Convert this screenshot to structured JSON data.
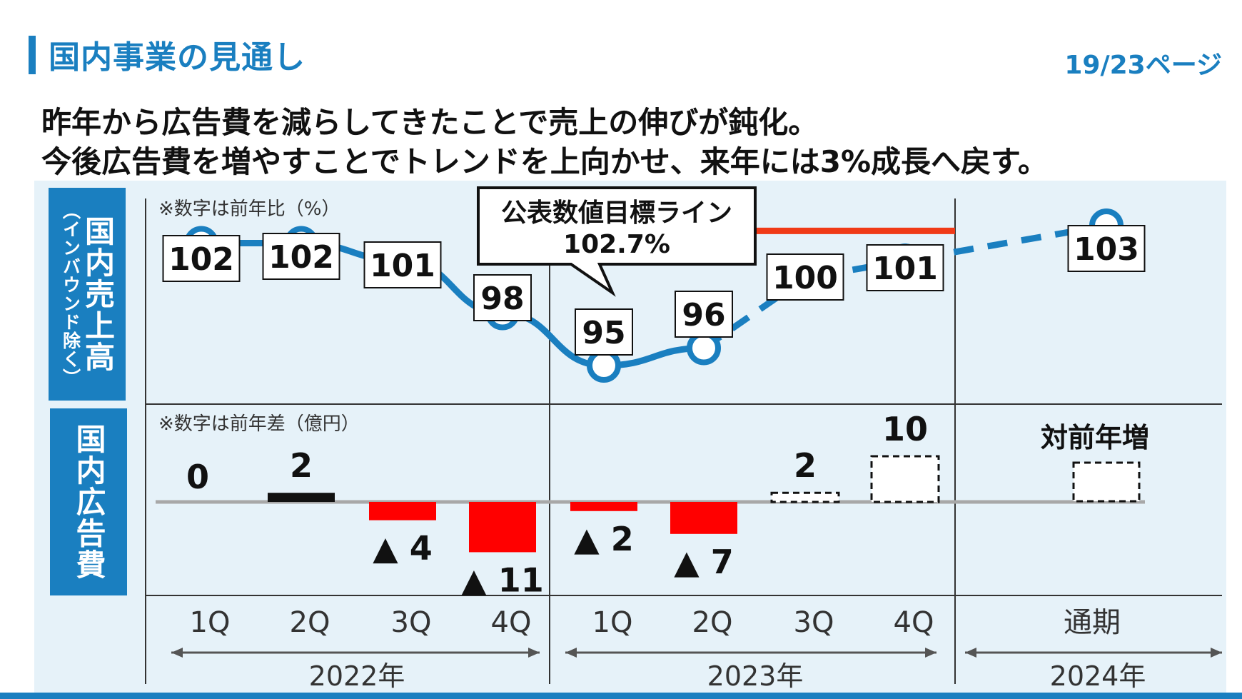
{
  "header": {
    "title": "国内事業の見通し",
    "page_number": "19/23ページ"
  },
  "headline": {
    "line1": "昨年から広告費を減らしてきたことで売上の伸びが鈍化。",
    "line2": "今後広告費を増やすことでトレンドを上向かせ、来年には3%成長へ戻す。"
  },
  "colors": {
    "brand": "#1a7fc0",
    "side_label_bg": "#1a7fc0",
    "line": "#1a7fc0",
    "target_line": "#f03a17",
    "negative_bar": "#ff0000",
    "positive_bar": "#111111"
  },
  "side_labels": {
    "sales": "国内売上高",
    "sales_note": "（インバウンド除く）",
    "ads": "国内広告費"
  },
  "chart_data": [
    {
      "type": "line",
      "note": "※数字は前年比（%）",
      "categories": [
        "2022 1Q",
        "2022 2Q",
        "2022 3Q",
        "2022 4Q",
        "2023 1Q",
        "2023 2Q",
        "2023 3Q",
        "2023 4Q",
        "2024 通期"
      ],
      "values": [
        102,
        102,
        101,
        98,
        95,
        96,
        100,
        101,
        103
      ],
      "labels": [
        "102",
        "102",
        "101",
        "98",
        "95",
        "96",
        "100",
        "101",
        "103"
      ],
      "actual_until_index": 5,
      "reference_line": {
        "value": 102.7,
        "label": "公表数値目標ライン",
        "value_label": "102.7%"
      }
    },
    {
      "type": "bar",
      "note": "※数字は前年差（億円）",
      "categories": [
        "2022 1Q",
        "2022 2Q",
        "2022 3Q",
        "2022 4Q",
        "2023 1Q",
        "2023 2Q",
        "2023 3Q",
        "2023 4Q",
        "2024 通期"
      ],
      "values": [
        0,
        2,
        -4,
        -11,
        -2,
        -7,
        2,
        10,
        null
      ],
      "labels": [
        "0",
        "2",
        "▲ 4",
        "▲ 11",
        "▲ 2",
        "▲ 7",
        "2",
        "10",
        "対前年増"
      ],
      "planned_from_index": 6
    }
  ],
  "x_axis": {
    "quarters": [
      "1Q",
      "2Q",
      "3Q",
      "4Q",
      "1Q",
      "2Q",
      "3Q",
      "4Q",
      "通期"
    ],
    "years": [
      "2022年",
      "2023年",
      "2024年"
    ]
  }
}
